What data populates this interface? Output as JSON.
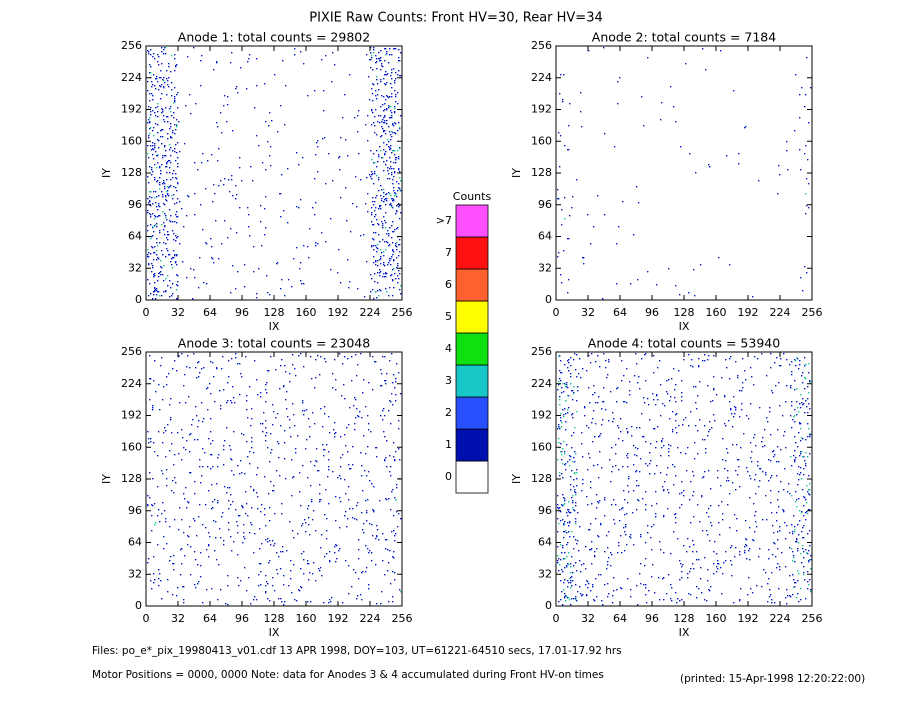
{
  "title": "PIXIE Raw Counts:  Front HV=30, Rear HV=34",
  "chart_data": [
    {
      "type": "heatmap",
      "title": "Anode 1: total counts = 29802",
      "xlabel": "IX",
      "ylabel": "IY",
      "xlim": [
        0,
        256
      ],
      "ylim": [
        0,
        256
      ],
      "xticks": [
        0,
        32,
        64,
        96,
        128,
        160,
        192,
        224,
        256
      ],
      "yticks": [
        0,
        32,
        64,
        96,
        128,
        160,
        192,
        224,
        256
      ]
    },
    {
      "type": "heatmap",
      "title": "Anode 2: total counts = 7184",
      "xlabel": "IX",
      "ylabel": "IY",
      "xlim": [
        0,
        256
      ],
      "ylim": [
        0,
        256
      ],
      "xticks": [
        0,
        32,
        64,
        96,
        128,
        160,
        192,
        224,
        256
      ],
      "yticks": [
        0,
        32,
        64,
        96,
        128,
        160,
        192,
        224,
        256
      ]
    },
    {
      "type": "heatmap",
      "title": "Anode 3: total counts = 23048",
      "xlabel": "IX",
      "ylabel": "IY",
      "xlim": [
        0,
        256
      ],
      "ylim": [
        0,
        256
      ],
      "xticks": [
        0,
        32,
        64,
        96,
        128,
        160,
        192,
        224,
        256
      ],
      "yticks": [
        0,
        32,
        64,
        96,
        128,
        160,
        192,
        224,
        256
      ]
    },
    {
      "type": "heatmap",
      "title": "Anode 4: total counts = 53940",
      "xlabel": "IX",
      "ylabel": "IY",
      "xlim": [
        0,
        256
      ],
      "ylim": [
        0,
        256
      ],
      "xticks": [
        0,
        32,
        64,
        96,
        128,
        160,
        192,
        224,
        256
      ],
      "yticks": [
        0,
        32,
        64,
        96,
        128,
        160,
        192,
        224,
        256
      ]
    }
  ],
  "colorbar": {
    "title": "Counts",
    "levels": [
      "0",
      "1",
      "2",
      "3",
      "4",
      "5",
      "6",
      "7",
      ">7"
    ],
    "colors": [
      "#ffffff",
      "#0010b0",
      "#2850ff",
      "#18c8c8",
      "#10e010",
      "#ffff00",
      "#ff6030",
      "#ff1010",
      "#ff50ff"
    ]
  },
  "footer": {
    "files": "Files: po_e*_pix_19980413_v01.cdf    13 APR 1998, DOY=103, UT=61221-64510 secs, 17.01-17.92 hrs",
    "note": "Motor Positions = 0000, 0000    Note: data for Anodes 3 & 4 accumulated during Front HV-on times",
    "printed": "(printed: 15-Apr-1998 12:20:22:00)"
  }
}
